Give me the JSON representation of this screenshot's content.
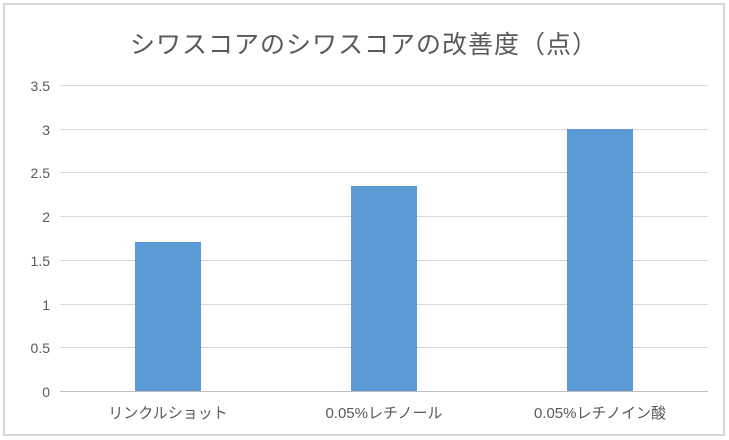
{
  "chart_data": {
    "type": "bar",
    "title": "シワスコアのシワスコアの改善度（点）",
    "categories": [
      "リンクルショット",
      "0.05%レチノール",
      "0.05%レチノイン酸"
    ],
    "values": [
      1.7,
      2.35,
      3.0
    ],
    "xlabel": "",
    "ylabel": "",
    "ylim": [
      0,
      3.5
    ],
    "ytick_step": 0.5,
    "ytick_labels": [
      "0",
      "0.5",
      "1",
      "1.5",
      "2",
      "2.5",
      "3",
      "3.5"
    ],
    "grid": true,
    "legend_position": "none",
    "bar_color": "#5b9bd5",
    "text_color": "#595959",
    "gridline_color": "#d9d9d9",
    "axis_line_color": "#bfbfbf",
    "border_color": "#d6d6d6"
  }
}
